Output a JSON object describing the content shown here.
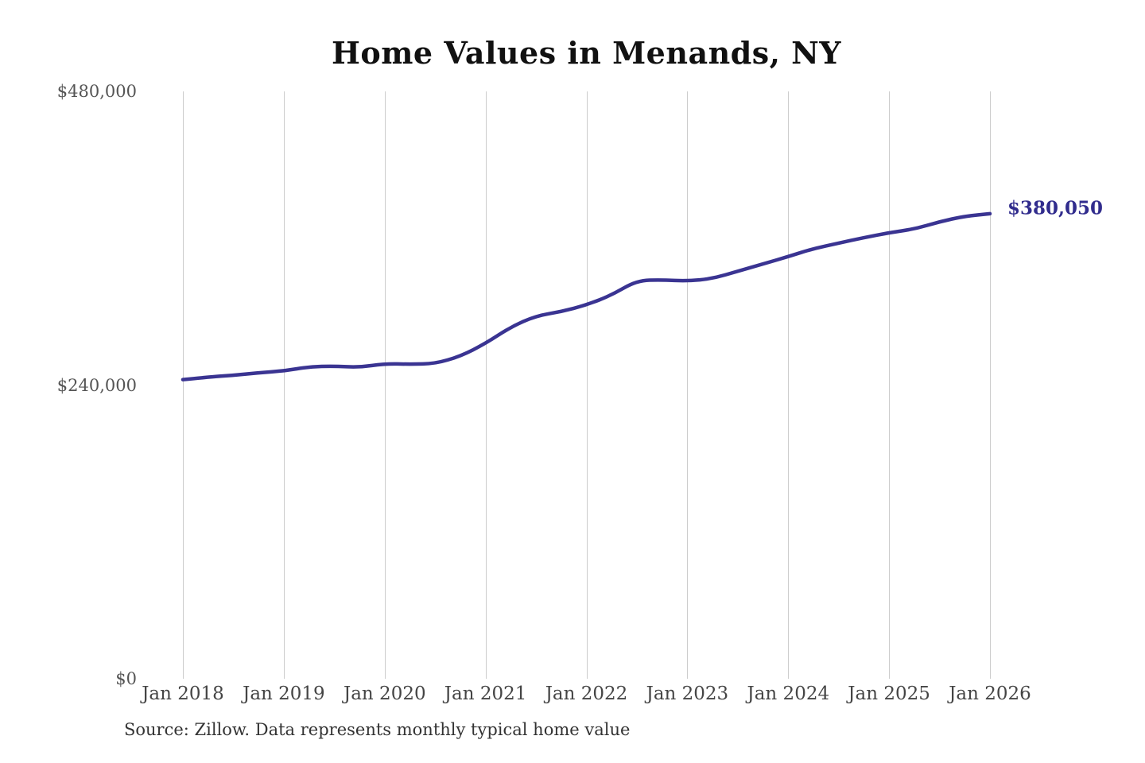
{
  "title": "Home Values in Menands, NY",
  "source_note": "Source: Zillow. Data represents monthly typical home value",
  "colors": {
    "line": "#3a3492",
    "end_label": "#312c8d",
    "gridline": "#cccccc",
    "axis_text": "#555555",
    "title_text": "#111111"
  },
  "chart_data": {
    "type": "line",
    "title": "Home Values in Menands, NY",
    "xlabel": "",
    "ylabel": "",
    "grid": "vertical-only",
    "legend": "none",
    "ylim": [
      0,
      480000
    ],
    "x_range": [
      2018,
      2026
    ],
    "y_tick_labels": [
      "$0",
      "$240,000",
      "$480,000"
    ],
    "y_tick_values": [
      0,
      240000,
      480000
    ],
    "x_tick_labels": [
      "Jan 2018",
      "Jan 2019",
      "Jan 2020",
      "Jan 2021",
      "Jan 2022",
      "Jan 2023",
      "Jan 2024",
      "Jan 2025",
      "Jan 2026"
    ],
    "x_tick_values": [
      2018,
      2019,
      2020,
      2021,
      2022,
      2023,
      2024,
      2025,
      2026
    ],
    "series": [
      {
        "name": "Monthly typical home value",
        "x": [
          2018.0,
          2018.25,
          2018.5,
          2018.75,
          2019.0,
          2019.25,
          2019.5,
          2019.75,
          2020.0,
          2020.25,
          2020.5,
          2020.75,
          2021.0,
          2021.25,
          2021.5,
          2021.75,
          2022.0,
          2022.25,
          2022.5,
          2022.75,
          2023.0,
          2023.25,
          2023.5,
          2023.75,
          2024.0,
          2024.25,
          2024.5,
          2024.75,
          2025.0,
          2025.25,
          2025.5,
          2025.75,
          2026.0
        ],
        "values": [
          244500,
          246500,
          248000,
          250000,
          251500,
          255000,
          255500,
          254500,
          257500,
          257000,
          257500,
          263500,
          274000,
          287500,
          296500,
          300000,
          305500,
          313500,
          325500,
          326000,
          325000,
          327000,
          333000,
          339000,
          345000,
          351500,
          356000,
          360500,
          364500,
          367500,
          373500,
          378000,
          380050
        ]
      }
    ],
    "end_annotation": {
      "text": "$380,050",
      "value": 380050
    }
  }
}
